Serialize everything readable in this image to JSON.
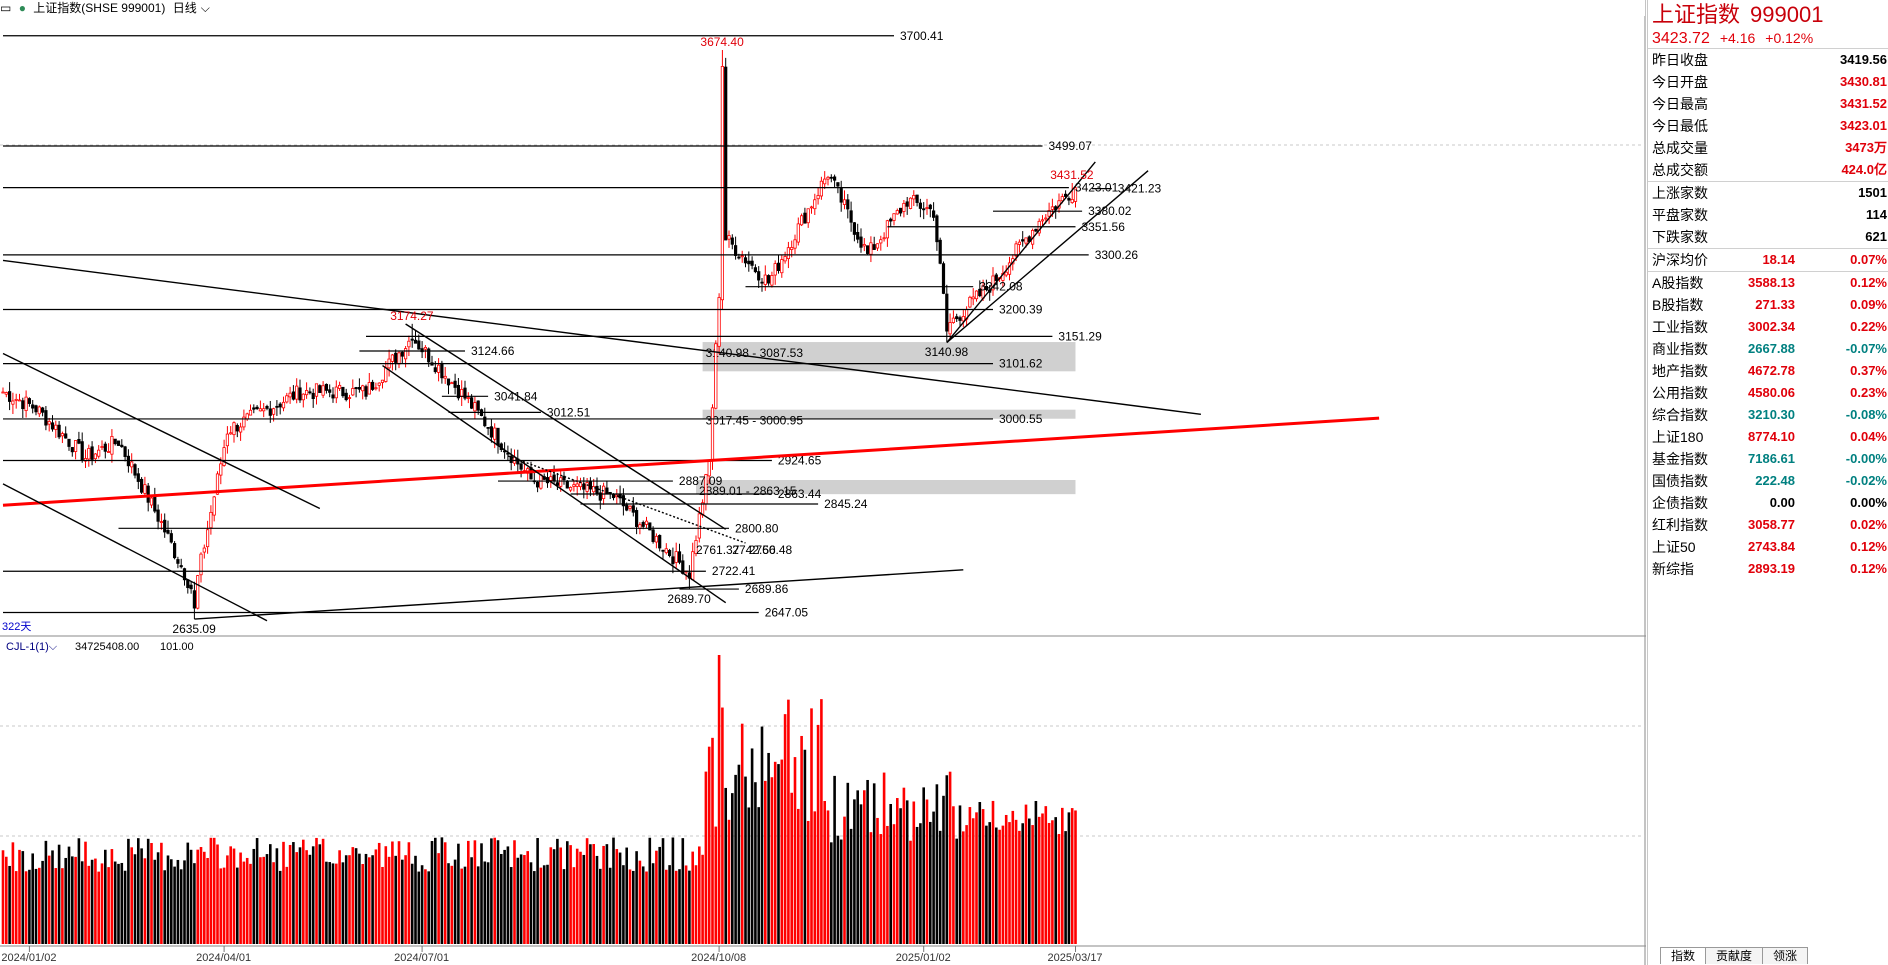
{
  "header": {
    "window_icon": "window-icon",
    "title": "上证指数(SHSE 999001)",
    "period": "日线"
  },
  "chart_data": {
    "type": "candlestick",
    "title": "上证指数(SHSE 999001)",
    "period": "日线",
    "bars_visible": "322天",
    "colors": {
      "up": "#ff0000",
      "down": "#000000",
      "trend_line": "#ff0000",
      "zone": "#d0d0d0"
    },
    "x_dates": [
      "2024/01/02",
      "2024/04/01",
      "2024/07/01",
      "2024/10/08",
      "2025/01/02",
      "2025/03/17"
    ],
    "x_date_index": [
      8,
      67,
      127,
      217,
      279,
      325
    ],
    "price_range": [
      2626,
      3700
    ],
    "key_points": [
      {
        "label": "2635.09",
        "index": 58,
        "price": 2635.09,
        "kind": "low"
      },
      {
        "label": "3174.27",
        "index": 124,
        "price": 3174.27,
        "kind": "high"
      },
      {
        "label": "2689.70",
        "index": 208,
        "price": 2689.7,
        "kind": "low"
      },
      {
        "label": "3674.40",
        "index": 218,
        "price": 3674.4,
        "kind": "high"
      },
      {
        "label": "3140.98",
        "index": 286,
        "price": 3140.98,
        "kind": "low"
      },
      {
        "label": "3431.52",
        "index": 324,
        "price": 3431.52,
        "kind": "high"
      }
    ],
    "support_resistance": [
      {
        "label": "3700.41",
        "price": 3700.41,
        "i0": 0,
        "i1": 270
      },
      {
        "label": "3499.07",
        "price": 3499.07,
        "i0": 0,
        "i1": 315
      },
      {
        "label": "3300.26",
        "price": 3300.26,
        "i0": 0,
        "i1": 329
      },
      {
        "label": "3200.39",
        "price": 3200.39,
        "i0": 0,
        "i1": 300
      },
      {
        "label": "3151.29",
        "price": 3151.29,
        "i0": 110,
        "i1": 318
      },
      {
        "label": "3124.66",
        "price": 3124.66,
        "i0": 108,
        "i1": 140
      },
      {
        "label": "3101.62",
        "price": 3101.62,
        "i0": 0,
        "i1": 300
      },
      {
        "label": "3041.84",
        "price": 3041.84,
        "i0": 133,
        "i1": 147
      },
      {
        "label": "3012.51",
        "price": 3012.51,
        "i0": 135,
        "i1": 163
      },
      {
        "label": "3000.55",
        "price": 3000.55,
        "i0": 0,
        "i1": 300
      },
      {
        "label": "2924.65",
        "price": 2924.65,
        "i0": 0,
        "i1": 233
      },
      {
        "label": "2887.09",
        "price": 2887.09,
        "i0": 150,
        "i1": 203
      },
      {
        "label": "2863.44",
        "price": 2863.44,
        "i0": 172,
        "i1": 233
      },
      {
        "label": "2845.24",
        "price": 2845.24,
        "i0": 175,
        "i1": 247
      },
      {
        "label": "2800.80",
        "price": 2800.8,
        "i0": 35,
        "i1": 220
      },
      {
        "label": "2722.41",
        "price": 2722.41,
        "i0": 0,
        "i1": 213
      },
      {
        "label": "2689.86",
        "price": 2689.86,
        "i0": 205,
        "i1": 223
      },
      {
        "label": "2647.05",
        "price": 2647.05,
        "i0": 0,
        "i1": 229
      },
      {
        "label": "3351.56",
        "price": 3351.56,
        "i0": 268,
        "i1": 325
      },
      {
        "label": "3380.02",
        "price": 3380.02,
        "i0": 300,
        "i1": 327
      },
      {
        "label": "3423.01",
        "price": 3423.01,
        "i0": 0,
        "i1": 323
      },
      {
        "label": "3421.23",
        "price": 3421.23,
        "i0": 330,
        "i1": 336
      },
      {
        "label": "3242.08",
        "price": 3242.08,
        "i0": 225,
        "i1": 294
      }
    ],
    "zones": [
      {
        "label": "3140.98 - 3087.53",
        "top": 3140.98,
        "bottom": 3087.53,
        "i0": 212,
        "i1": 325
      },
      {
        "label": "3017.45 - 3000.95",
        "top": 3017.45,
        "bottom": 3000.95,
        "i0": 212,
        "i1": 325
      },
      {
        "label": "2889.01 - 2863.15",
        "top": 2889.01,
        "bottom": 2863.15,
        "i0": 210,
        "i1": 325
      }
    ],
    "extra_labels": [
      {
        "text": "2761.37",
        "index": 210,
        "price": 2761
      },
      {
        "text": "2742.56",
        "index": 221,
        "price": 2761
      },
      {
        "text": "2760.48",
        "index": 226,
        "price": 2761
      }
    ],
    "trend_lines": [
      {
        "i0": 0,
        "p0": 2843,
        "i1": 417,
        "p1": 3002,
        "color": "red"
      },
      {
        "i0": 0,
        "p0": 3290,
        "i1": 363,
        "p1": 3009,
        "color": "black"
      },
      {
        "i0": 0,
        "p0": 3120,
        "i1": 96,
        "p1": 2837,
        "color": "black"
      },
      {
        "i0": 0,
        "p0": 2882,
        "i1": 80,
        "p1": 2632,
        "color": "black"
      },
      {
        "i0": 122,
        "p0": 3174,
        "i1": 219,
        "p1": 2799,
        "color": "black"
      },
      {
        "i0": 115,
        "p0": 3098,
        "i1": 219,
        "p1": 2665,
        "color": "black"
      },
      {
        "i0": 58,
        "p0": 2635,
        "i1": 291,
        "p1": 2725,
        "color": "black"
      },
      {
        "i0": 286,
        "p0": 3140,
        "i1": 331,
        "p1": 3470,
        "color": "black"
      },
      {
        "i0": 286,
        "p0": 3140,
        "i1": 347,
        "p1": 3454,
        "color": "black"
      },
      {
        "i0": 153,
        "p0": 2933,
        "i1": 225,
        "p1": 2774,
        "color": "black",
        "dotted": true
      }
    ],
    "volume": {
      "indicator": "CJL-1(1)",
      "value": "34725408.00",
      "ratio": "101.00",
      "max": 1000
    },
    "series_segments": [
      {
        "start": 0,
        "end": 10,
        "from": 3050,
        "to": 3020
      },
      {
        "start": 10,
        "end": 25,
        "from": 3020,
        "to": 2930
      },
      {
        "start": 25,
        "end": 35,
        "from": 2930,
        "to": 2960
      },
      {
        "start": 35,
        "end": 48,
        "from": 2960,
        "to": 2810
      },
      {
        "start": 48,
        "end": 58,
        "from": 2810,
        "to": 2680
      },
      {
        "start": 58,
        "end": 68,
        "from": 2680,
        "to": 2980
      },
      {
        "start": 68,
        "end": 90,
        "from": 2980,
        "to": 3050
      },
      {
        "start": 90,
        "end": 110,
        "from": 3050,
        "to": 3050
      },
      {
        "start": 110,
        "end": 124,
        "from": 3050,
        "to": 3150
      },
      {
        "start": 124,
        "end": 140,
        "from": 3150,
        "to": 3040
      },
      {
        "start": 140,
        "end": 160,
        "from": 3040,
        "to": 2890
      },
      {
        "start": 160,
        "end": 185,
        "from": 2890,
        "to": 2860
      },
      {
        "start": 185,
        "end": 208,
        "from": 2860,
        "to": 2720
      },
      {
        "start": 208,
        "end": 214,
        "from": 2720,
        "to": 2920
      },
      {
        "start": 214,
        "end": 218,
        "from": 2920,
        "to": 3336
      },
      {
        "start": 218,
        "end": 232,
        "from": 3336,
        "to": 3250
      },
      {
        "start": 232,
        "end": 250,
        "from": 3250,
        "to": 3450
      },
      {
        "start": 250,
        "end": 262,
        "from": 3450,
        "to": 3300
      },
      {
        "start": 262,
        "end": 274,
        "from": 3300,
        "to": 3400
      },
      {
        "start": 274,
        "end": 282,
        "from": 3400,
        "to": 3380
      },
      {
        "start": 282,
        "end": 286,
        "from": 3380,
        "to": 3170
      },
      {
        "start": 286,
        "end": 300,
        "from": 3170,
        "to": 3250
      },
      {
        "start": 300,
        "end": 315,
        "from": 3250,
        "to": 3370
      },
      {
        "start": 315,
        "end": 325,
        "from": 3370,
        "to": 3423
      }
    ]
  },
  "sidebar": {
    "name": "上证指数",
    "code": "999001",
    "price": "3423.72",
    "change": "+4.16",
    "change_pct": "+0.12%",
    "stats": [
      {
        "label": "昨日收盘",
        "value": "3419.56",
        "color": "#000000"
      },
      {
        "label": "今日开盘",
        "value": "3430.81",
        "color": "#e0000a"
      },
      {
        "label": "今日最高",
        "value": "3431.52",
        "color": "#e0000a"
      },
      {
        "label": "今日最低",
        "value": "3423.01",
        "color": "#e0000a"
      },
      {
        "label": "总成交量",
        "value": "3473万",
        "color": "#e0000a"
      },
      {
        "label": "总成交额",
        "value": "424.0亿",
        "color": "#e0000a"
      }
    ],
    "breadth": [
      {
        "label": "上涨家数",
        "value": "1501",
        "color": "#000000"
      },
      {
        "label": "平盘家数",
        "value": "114",
        "color": "#000000"
      },
      {
        "label": "下跌家数",
        "value": "621",
        "color": "#000000"
      }
    ],
    "avg": {
      "label": "沪深均价",
      "value": "18.14",
      "pct": "0.07%"
    },
    "indices": [
      {
        "label": "A股指数",
        "value": "3588.13",
        "pct": "0.12%",
        "color": "#e0000a"
      },
      {
        "label": "B股指数",
        "value": "271.33",
        "pct": "0.09%",
        "color": "#e0000a"
      },
      {
        "label": "工业指数",
        "value": "3002.34",
        "pct": "0.22%",
        "color": "#e0000a"
      },
      {
        "label": "商业指数",
        "value": "2667.88",
        "pct": "-0.07%",
        "color": "#008080"
      },
      {
        "label": "地产指数",
        "value": "4672.78",
        "pct": "0.37%",
        "color": "#e0000a"
      },
      {
        "label": "公用指数",
        "value": "4580.06",
        "pct": "0.23%",
        "color": "#e0000a"
      },
      {
        "label": "综合指数",
        "value": "3210.30",
        "pct": "-0.08%",
        "color": "#008080"
      },
      {
        "label": "上证180",
        "value": "8774.10",
        "pct": "0.04%",
        "color": "#e0000a"
      },
      {
        "label": "基金指数",
        "value": "7186.61",
        "pct": "-0.00%",
        "color": "#008080"
      },
      {
        "label": "国债指数",
        "value": "222.48",
        "pct": "-0.02%",
        "color": "#008080"
      },
      {
        "label": "企债指数",
        "value": "0.00",
        "pct": "0.00%",
        "color": "#000000"
      },
      {
        "label": "红利指数",
        "value": "3058.77",
        "pct": "0.02%",
        "color": "#e0000a"
      },
      {
        "label": "上证50",
        "value": "2743.84",
        "pct": "0.12%",
        "color": "#e0000a"
      },
      {
        "label": "新综指",
        "value": "2893.19",
        "pct": "0.12%",
        "color": "#e0000a"
      }
    ],
    "tabs": [
      "指数",
      "贡献度",
      "领涨"
    ]
  }
}
